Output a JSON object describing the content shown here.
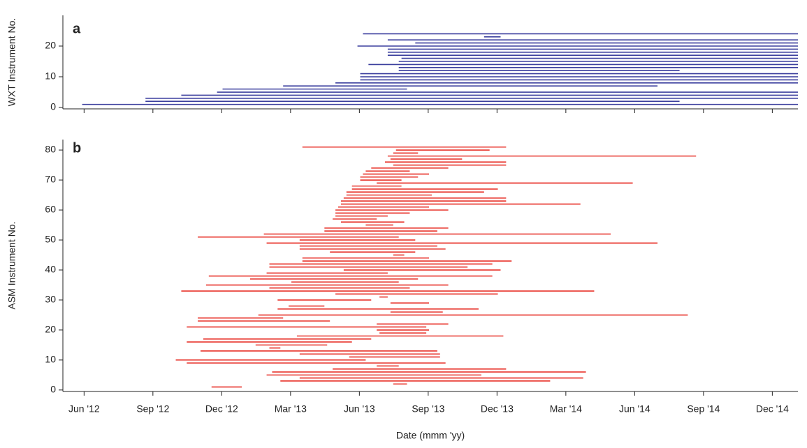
{
  "chart_data": [
    {
      "type": "segment",
      "panel_label": "a",
      "ylabel": "WXT Instrument No.",
      "color": "#3b3f9e",
      "xlim": [
        2012.34,
        2015.01
      ],
      "ylim": [
        -0.45,
        30
      ],
      "yticks": [
        0,
        10,
        20
      ],
      "y": [
        1,
        2,
        3,
        4,
        5,
        6,
        7,
        8,
        9,
        10,
        11,
        12,
        13,
        14,
        15,
        16,
        17,
        18,
        19,
        20,
        21,
        22,
        23,
        24
      ],
      "start": [
        2012.41,
        2012.64,
        2012.64,
        2012.77,
        2012.9,
        2012.92,
        2013.14,
        2013.33,
        2013.42,
        2013.42,
        2013.42,
        2013.56,
        2013.56,
        2013.45,
        2013.56,
        2013.57,
        2013.52,
        2013.52,
        2013.52,
        2013.41,
        2013.62,
        2013.52,
        2013.87,
        2013.43
      ],
      "end": [
        2015.01,
        2014.58,
        2015.01,
        2015.01,
        2015.01,
        2013.59,
        2014.5,
        2015.01,
        2015.01,
        2015.01,
        2015.01,
        2014.58,
        2015.01,
        2015.01,
        2015.01,
        2015.01,
        2015.01,
        2015.01,
        2015.01,
        2015.01,
        2015.01,
        2015.01,
        2013.93,
        2015.01
      ]
    },
    {
      "type": "segment",
      "panel_label": "b",
      "ylabel": "ASM Instrument No.",
      "xlabel": "Date (mmm 'yy)",
      "color": "#e8342c",
      "xlim": [
        2012.34,
        2015.01
      ],
      "ylim": [
        -0.5,
        83.5
      ],
      "yticks": [
        0,
        10,
        20,
        30,
        40,
        50,
        60,
        70,
        80
      ],
      "xticks": [
        {
          "value": 2012.417,
          "label": "Jun '12"
        },
        {
          "value": 2012.667,
          "label": "Sep '12"
        },
        {
          "value": 2012.917,
          "label": "Dec '12"
        },
        {
          "value": 2013.167,
          "label": "Mar '13"
        },
        {
          "value": 2013.417,
          "label": "Jun '13"
        },
        {
          "value": 2013.667,
          "label": "Sep '13"
        },
        {
          "value": 2013.917,
          "label": "Dec '13"
        },
        {
          "value": 2014.167,
          "label": "Mar '14"
        },
        {
          "value": 2014.417,
          "label": "Jun '14"
        },
        {
          "value": 2014.667,
          "label": "Sep '14"
        },
        {
          "value": 2014.917,
          "label": "Dec '14"
        }
      ],
      "y": [
        1,
        2,
        3,
        4,
        5,
        6,
        7,
        8,
        9,
        10,
        11,
        12,
        13,
        14,
        15,
        16,
        17,
        18,
        19,
        20,
        21,
        22,
        23,
        24,
        25,
        26,
        27,
        28,
        29,
        30,
        31,
        32,
        33,
        34,
        35,
        36,
        37,
        38,
        39,
        40,
        41,
        42,
        43,
        44,
        45,
        46,
        47,
        48,
        49,
        50,
        51,
        52,
        53,
        54,
        55,
        56,
        57,
        58,
        59,
        60,
        61,
        62,
        63,
        64,
        65,
        66,
        67,
        68,
        69,
        70,
        71,
        72,
        73,
        74,
        75,
        76,
        77,
        78,
        79,
        80,
        81
      ],
      "start": [
        2012.88,
        2013.54,
        2013.13,
        2013.2,
        2013.08,
        2013.1,
        2013.32,
        2013.48,
        2012.79,
        2012.75,
        2013.38,
        2013.2,
        2012.84,
        2013.09,
        2013.04,
        2012.79,
        2012.85,
        2013.19,
        2013.49,
        2013.48,
        2012.79,
        2013.48,
        2012.83,
        2012.83,
        2013.05,
        2013.53,
        2013.12,
        2013.16,
        2013.53,
        2013.12,
        2013.49,
        2013.33,
        2012.77,
        2013.09,
        2012.86,
        2013.17,
        2013.02,
        2012.87,
        2013.08,
        2013.36,
        2013.09,
        2013.09,
        2013.21,
        2013.21,
        2013.54,
        2013.31,
        2013.2,
        2013.2,
        2013.08,
        2013.2,
        2012.83,
        2013.07,
        2013.29,
        2013.29,
        2013.44,
        2013.35,
        2013.32,
        2013.33,
        2013.33,
        2013.33,
        2013.34,
        2013.35,
        2013.35,
        2013.36,
        2013.37,
        2013.37,
        2013.39,
        2013.39,
        2013.48,
        2013.42,
        2013.42,
        2013.43,
        2013.44,
        2013.46,
        2013.54,
        2013.51,
        2013.53,
        2013.52,
        2013.54,
        2013.55,
        2013.21
      ],
      "end": [
        2012.99,
        2013.59,
        2014.11,
        2014.23,
        2013.86,
        2014.24,
        2013.95,
        2013.56,
        2013.73,
        2013.44,
        2013.71,
        2013.71,
        2013.7,
        2013.13,
        2013.3,
        2013.39,
        2013.46,
        2013.94,
        2013.66,
        2013.67,
        2013.66,
        2013.74,
        2013.31,
        2013.14,
        2014.61,
        2013.72,
        2013.85,
        2013.29,
        2013.67,
        2013.46,
        2013.52,
        2013.92,
        2014.27,
        2013.6,
        2013.74,
        2013.56,
        2013.63,
        2013.9,
        2013.52,
        2013.93,
        2013.81,
        2013.9,
        2013.97,
        2013.67,
        2013.58,
        2013.62,
        2013.73,
        2013.7,
        2014.5,
        2013.62,
        2013.56,
        2014.33,
        2013.7,
        2013.74,
        2013.54,
        2013.58,
        2013.48,
        2013.52,
        2013.6,
        2013.74,
        2013.67,
        2014.22,
        2013.95,
        2013.95,
        2013.68,
        2013.87,
        2013.92,
        2013.57,
        2014.41,
        2013.57,
        2013.63,
        2013.67,
        2013.6,
        2013.74,
        2013.95,
        2013.95,
        2013.79,
        2014.64,
        2013.63,
        2013.89,
        2013.95
      ]
    }
  ]
}
